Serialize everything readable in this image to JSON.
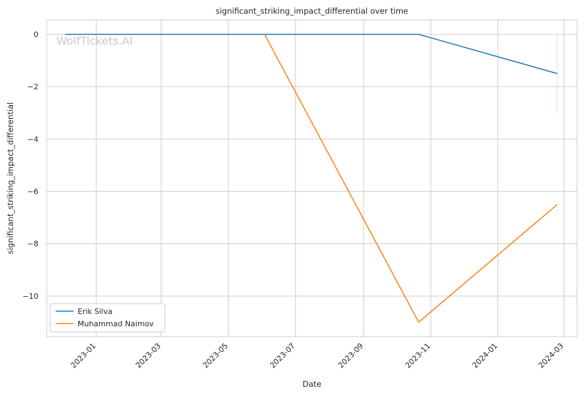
{
  "chart_data": {
    "type": "line",
    "title": "significant_striking_impact_differential over time",
    "xlabel": "Date",
    "ylabel": "significant_striking_impact_differential",
    "watermark": "WolfTickets.AI",
    "x_ticks": [
      "2023-01",
      "2023-03",
      "2023-05",
      "2023-07",
      "2023-09",
      "2023-11",
      "2024-01",
      "2024-03"
    ],
    "y_ticks": [
      0,
      -2,
      -4,
      -6,
      -8,
      -10
    ],
    "y_tick_labels": [
      "0",
      "−2",
      "−4",
      "−6",
      "−8",
      "−10"
    ],
    "xlim": [
      "2022-11-17",
      "2024-03-13"
    ],
    "ylim": [
      -11.55,
      0.55
    ],
    "grid": true,
    "legend_position": "lower-left",
    "series": [
      {
        "name": "Erik Silva",
        "color": "#1f77b4",
        "points": [
          [
            "2022-12-04",
            0
          ],
          [
            "2023-10-21",
            0
          ],
          [
            "2024-02-24",
            -1.5
          ]
        ]
      },
      {
        "name": "Muhammad Naimov",
        "color": "#ff7f0e",
        "points": [
          [
            "2023-06-03",
            0
          ],
          [
            "2023-10-21",
            -11
          ],
          [
            "2024-02-24",
            -6.5
          ]
        ]
      }
    ],
    "error_band": {
      "series": "Erik Silva",
      "x": "2024-02-24",
      "low": -3,
      "high": 0
    }
  }
}
